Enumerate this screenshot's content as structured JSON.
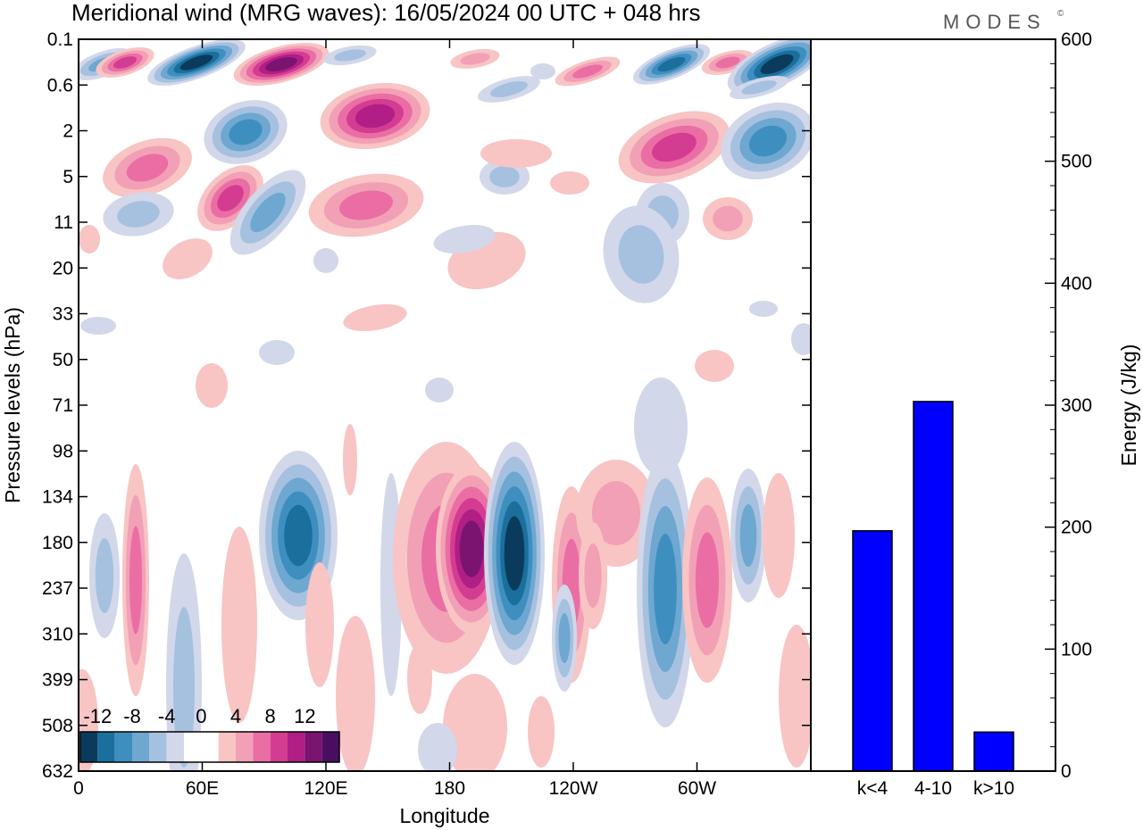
{
  "title": "Meridional wind (MRG waves):  16/05/2024  00 UTC  + 048 hrs",
  "logo": "MODES",
  "logo_mark": "©",
  "chart_data": [
    {
      "type": "heatmap",
      "xlabel": "Longitude",
      "ylabel": "Pressure levels (hPa)",
      "x_ticks": [
        "0",
        "60E",
        "120E",
        "180",
        "120W",
        "60W"
      ],
      "y_ticks": [
        "0.1",
        "0.6",
        "2",
        "5",
        "11",
        "20",
        "33",
        "50",
        "71",
        "98",
        "134",
        "180",
        "237",
        "310",
        "399",
        "508",
        "632"
      ],
      "colorbar": {
        "labels": [
          "-12",
          "-8",
          "-4",
          "0",
          "4",
          "8",
          "12"
        ],
        "colors": [
          "#0b3b5c",
          "#1a6f9c",
          "#3e8fc0",
          "#6ea7d0",
          "#a6c1df",
          "#d2d7ea",
          "#ffffff",
          "#ffffff",
          "#f8c4c4",
          "#f2a0b6",
          "#ea6ea4",
          "#d43c92",
          "#b01e86",
          "#7a1470",
          "#4a0e60"
        ]
      }
    },
    {
      "type": "bar",
      "categories": [
        "k<4",
        "4-10",
        "k>10"
      ],
      "values": [
        197,
        303,
        32
      ],
      "ylabel": "Energy (J/kg)",
      "ylim": [
        0,
        600
      ],
      "y_ticks": [
        "0",
        "100",
        "200",
        "300",
        "400",
        "500",
        "600"
      ],
      "bar_color": "#0000ff"
    }
  ]
}
